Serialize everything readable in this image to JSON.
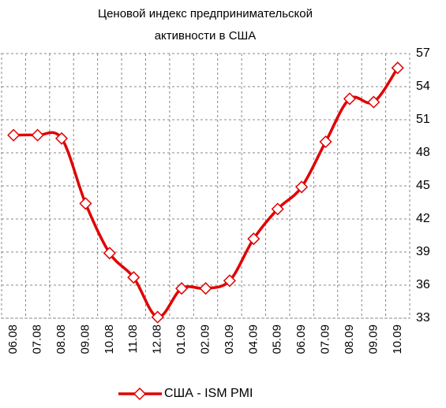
{
  "chart_data": {
    "type": "line",
    "title": [
      "Ценовой индекс предпринимательской",
      "активности в США"
    ],
    "categories": [
      "06.08",
      "07.08",
      "08.08",
      "09.08",
      "10.08",
      "11.08",
      "12.08",
      "01.09",
      "02.09",
      "03.09",
      "04.09",
      "05.09",
      "06.09",
      "07.09",
      "08.09",
      "09.09",
      "10.09"
    ],
    "series": [
      {
        "name": "США - ISM PMI",
        "color": "#e00000",
        "values": [
          49.6,
          49.6,
          49.3,
          43.4,
          38.9,
          36.7,
          33.1,
          35.7,
          35.7,
          36.4,
          40.2,
          42.9,
          44.9,
          49.0,
          52.9,
          52.6,
          55.7
        ]
      }
    ],
    "ylim": [
      33,
      57
    ],
    "yticks": [
      33,
      36,
      39,
      42,
      45,
      48,
      51,
      54,
      57
    ],
    "y_axis_side": "right",
    "grid": true,
    "legend": "bottom"
  }
}
